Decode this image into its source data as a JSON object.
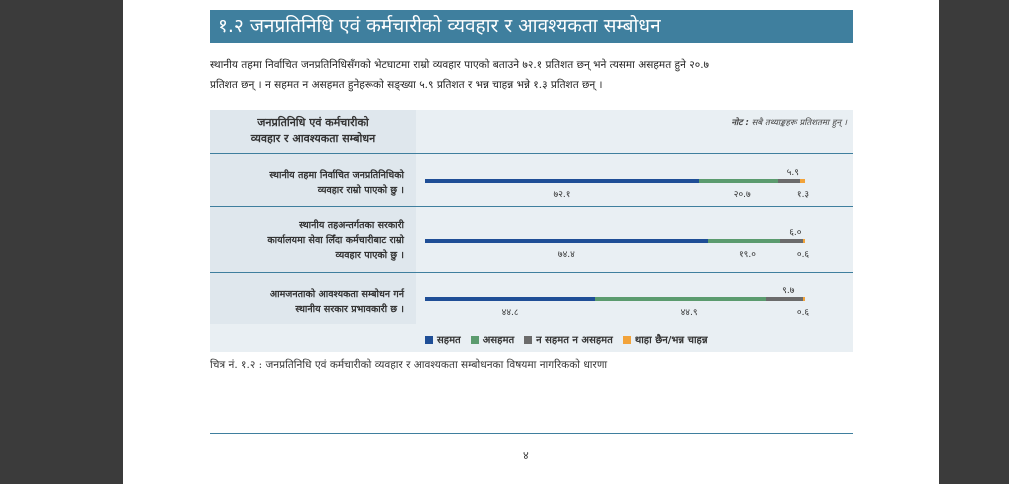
{
  "heading": "१.२ जनप्रतिनिधि एवं कर्मचारीको व्यवहार र आवश्यकता सम्बोधन",
  "paragraph": {
    "line1": "स्थानीय तहमा निर्वाचित जनप्रतिनिधिसँगको भेटघाटमा राम्रो व्यवहार पाएको बताउने ७२.१ प्रतिशत छन् भने त्यसमा असहमत हुने २०.७",
    "line2": "प्रतिशत छन् । न सहमत न असहमत हुनेहरूको सङ्ख्या ५.९ प्रतिशत र भन्न चाहन्न भन्ने १.३ प्रतिशत छन् ।"
  },
  "chart": {
    "header_line1": "जनप्रतिनिधि एवं कर्मचारीको",
    "header_line2": "व्यवहार र आवश्यकता सम्बोधन",
    "note_label": "नोट :",
    "note_text": "सबै तथ्याङ्कहरू प्रतिशतमा हुन् ।",
    "rows": [
      {
        "lines": [
          "स्थानीय तहमा निर्वाचित जनप्रतिनिधिको",
          "व्यवहार राम्रो पाएको छु ।"
        ]
      },
      {
        "lines": [
          "स्थानीय तहअन्तर्गतका सरकारी",
          "कार्यालयमा सेवा लिँदा कर्मचारीबाट राम्रो",
          "व्यवहार पाएको छु ।"
        ]
      },
      {
        "lines": [
          "आमजनताको आवश्यकता सम्बोधन गर्न",
          "स्थानीय सरकार प्रभावकारी छ ।"
        ]
      }
    ]
  },
  "chart_data": {
    "type": "bar",
    "orientation": "horizontal",
    "stacked": true,
    "categories": [
      "स्थानीय तहमा निर्वाचित जनप्रतिनिधिको व्यवहार राम्रो पाएको छु ।",
      "स्थानीय तहअन्तर्गतका सरकारी कार्यालयमा सेवा लिँदा कर्मचारीबाट राम्रो व्यवहार पाएको छु ।",
      "आमजनताको आवश्यकता सम्बोधन गर्न स्थानीय सरकार प्रभावकारी छ ।"
    ],
    "series": [
      {
        "name": "सहमत",
        "color": "#1f4e96",
        "values": [
          72.1,
          74.4,
          44.8
        ],
        "labels": [
          "७२.१",
          "७४.४",
          "४४.८"
        ]
      },
      {
        "name": "असहमत",
        "color": "#5b9b6e",
        "values": [
          20.7,
          19.0,
          44.9
        ],
        "labels": [
          "२०.७",
          "१९.०",
          "४४.९"
        ]
      },
      {
        "name": "न सहमत न असहमत",
        "color": "#6b6b6b",
        "values": [
          5.9,
          6.0,
          9.7
        ],
        "labels": [
          "५.९",
          "६.०",
          "९.७"
        ]
      },
      {
        "name": "थाहा छैन/भन्न चाहन्न",
        "color": "#f2a33a",
        "values": [
          1.3,
          0.6,
          0.6
        ],
        "labels": [
          "१.३",
          "०.६",
          "०.६"
        ]
      }
    ],
    "legend": "bottom"
  },
  "caption": "चित्र नं. १.२ : जनप्रतिनिधि एवं कर्मचारीको व्यवहार र आवश्यकता सम्बोधनका विषयमा नागरिकको धारणा",
  "page_number": "४"
}
